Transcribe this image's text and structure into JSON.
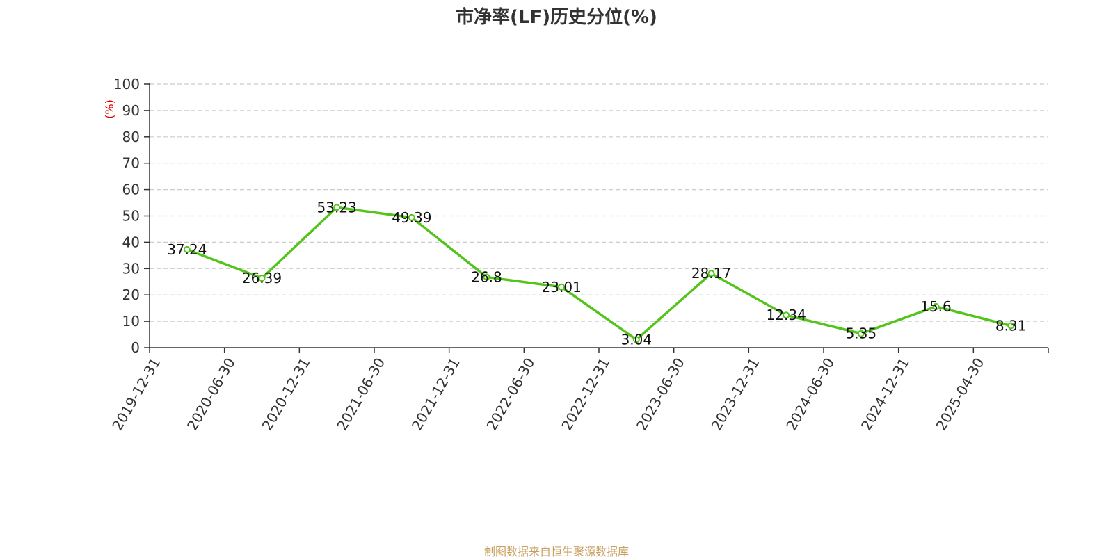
{
  "chart_data": {
    "type": "line",
    "title": "市净率(LF)历史分位(%)",
    "ylabel": "(%)",
    "xlabel": "",
    "ylim": [
      0,
      100
    ],
    "yticks": [
      0,
      10,
      20,
      30,
      40,
      50,
      60,
      70,
      80,
      90,
      100
    ],
    "grid": true,
    "categories": [
      "2019-12-31",
      "2020-06-30",
      "2020-12-31",
      "2021-06-30",
      "2021-12-31",
      "2022-06-30",
      "2022-12-31",
      "2023-06-30",
      "2023-12-31",
      "2024-06-30",
      "2024-12-31",
      "2025-04-30"
    ],
    "series": [
      {
        "values": [
          37.24,
          26.39,
          53.23,
          49.39,
          26.8,
          23.01,
          3.04,
          28.17,
          12.34,
          5.35,
          15.6,
          8.31
        ],
        "labels": [
          "37.24",
          "26.39",
          "53.23",
          "49.39",
          "26.8",
          "23.01",
          "3.04",
          "28.17",
          "12.34",
          "5.35",
          "15.6",
          "8.31"
        ],
        "color": "#52c41a"
      }
    ],
    "ylabel_color": "#e00000",
    "grid_color": "#cccccc",
    "axis_color": "#333333"
  },
  "footer": {
    "source": "制图数据来自恒生聚源数据库",
    "source_color": "#c8a060"
  }
}
